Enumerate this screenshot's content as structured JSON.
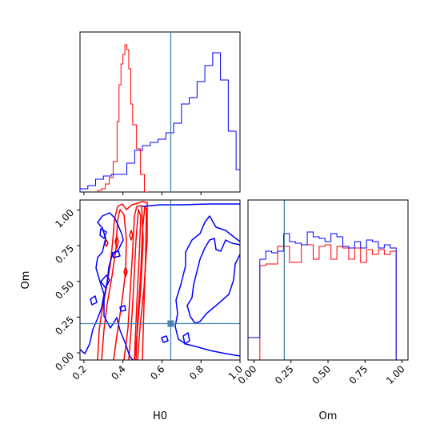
{
  "chart_data": {
    "type": "corner",
    "parameters": [
      "H0",
      "Om"
    ],
    "truth": {
      "H0": 0.645,
      "Om": 0.205
    },
    "truth_color": "#4682b4",
    "series": [
      {
        "color": "#ff0000"
      },
      {
        "color": "#0000ff"
      }
    ],
    "panels": [
      {
        "id": "h0-hist",
        "type": "histogram",
        "x_param": "H0",
        "xlim": [
          0.18,
          1.0
        ],
        "x_ticks": [
          0.2,
          0.4,
          0.6,
          0.8
        ],
        "series": [
          {
            "color": "#ff0000",
            "edges": [
              0.27,
              0.29,
              0.31,
              0.33,
              0.35,
              0.37,
              0.38,
              0.39,
              0.4,
              0.41,
              0.42,
              0.43,
              0.44,
              0.45,
              0.47,
              0.49,
              0.51,
              0.53
            ],
            "counts": [
              0.01,
              0.02,
              0.05,
              0.09,
              0.19,
              0.44,
              0.67,
              0.8,
              0.86,
              0.92,
              0.89,
              0.77,
              0.55,
              0.42,
              0.27,
              0.11,
              0.0
            ]
          },
          {
            "color": "#0000ff",
            "edges": [
              0.18,
              0.22,
              0.26,
              0.3,
              0.34,
              0.38,
              0.42,
              0.46,
              0.5,
              0.54,
              0.58,
              0.62,
              0.66,
              0.7,
              0.74,
              0.78,
              0.82,
              0.86,
              0.9,
              0.94,
              0.98,
              1.0
            ],
            "counts": [
              0.02,
              0.04,
              0.08,
              0.1,
              0.11,
              0.11,
              0.18,
              0.26,
              0.29,
              0.31,
              0.33,
              0.37,
              0.43,
              0.55,
              0.59,
              0.69,
              0.79,
              0.87,
              0.7,
              0.38,
              0.14
            ]
          }
        ]
      },
      {
        "id": "om-vs-h0",
        "type": "contour",
        "x_param": "H0",
        "y_param": "Om",
        "xlim": [
          0.18,
          1.0
        ],
        "ylim": [
          -0.05,
          1.07
        ],
        "x_ticks": [
          0.2,
          0.4,
          0.6,
          0.8,
          1.0
        ],
        "y_ticks": [
          0.0,
          0.25,
          0.5,
          0.75,
          1.0
        ]
      },
      {
        "id": "om-hist",
        "type": "histogram",
        "x_param": "Om",
        "xlim": [
          -0.04,
          1.04
        ],
        "x_ticks": [
          0.0,
          0.25,
          0.5,
          0.75,
          1.0
        ],
        "series": [
          {
            "color": "#ff0000",
            "edges": [
              -0.04,
              0.0,
              0.04,
              0.08,
              0.12,
              0.16,
              0.2,
              0.24,
              0.28,
              0.32,
              0.36,
              0.4,
              0.44,
              0.48,
              0.52,
              0.56,
              0.6,
              0.64,
              0.68,
              0.72,
              0.76,
              0.8,
              0.84,
              0.88,
              0.92,
              0.96,
              1.0,
              1.04
            ],
            "counts": [
              0.0,
              0.0,
              0.59,
              0.6,
              0.6,
              0.71,
              0.71,
              0.61,
              0.61,
              0.72,
              0.72,
              0.63,
              0.71,
              0.72,
              0.63,
              0.71,
              0.7,
              0.63,
              0.7,
              0.61,
              0.69,
              0.66,
              0.69,
              0.66,
              0.68,
              0.0,
              0.0
            ]
          },
          {
            "color": "#0000ff",
            "edges": [
              -0.04,
              0.0,
              0.04,
              0.08,
              0.12,
              0.16,
              0.2,
              0.24,
              0.28,
              0.32,
              0.36,
              0.4,
              0.44,
              0.48,
              0.52,
              0.56,
              0.6,
              0.64,
              0.68,
              0.72,
              0.76,
              0.8,
              0.84,
              0.88,
              0.92,
              0.96,
              1.0,
              1.04
            ],
            "counts": [
              0.14,
              0.14,
              0.63,
              0.68,
              0.67,
              0.68,
              0.79,
              0.74,
              0.73,
              0.72,
              0.8,
              0.77,
              0.76,
              0.74,
              0.79,
              0.77,
              0.71,
              0.7,
              0.74,
              0.7,
              0.75,
              0.74,
              0.7,
              0.72,
              0.7,
              0.0,
              0.0
            ]
          }
        ]
      }
    ],
    "xlabels": [
      "H0",
      "Om"
    ],
    "ylabels": [
      "Om"
    ]
  },
  "labels": {
    "ylabel": "Om",
    "xlabel_h0": "H0",
    "xlabel_om": "Om"
  }
}
